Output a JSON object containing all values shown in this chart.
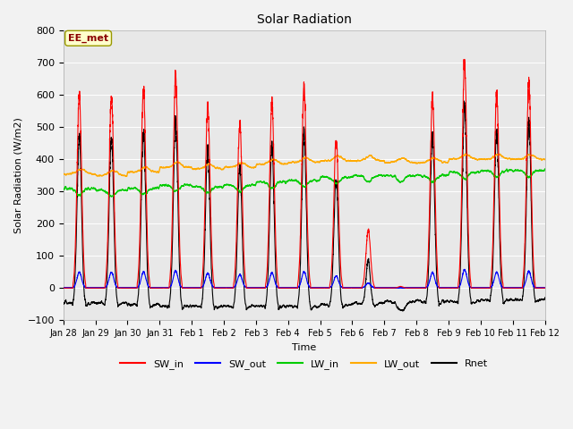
{
  "title": "Solar Radiation",
  "xlabel": "Time",
  "ylabel": "Solar Radiation (W/m2)",
  "ylim": [
    -100,
    800
  ],
  "yticks": [
    -100,
    0,
    100,
    200,
    300,
    400,
    500,
    600,
    700,
    800
  ],
  "annotation_text": "EE_met",
  "legend_entries": [
    "SW_in",
    "SW_out",
    "LW_in",
    "LW_out",
    "Rnet"
  ],
  "line_colors": {
    "SW_in": "#ff0000",
    "SW_out": "#0000ff",
    "LW_in": "#00cc00",
    "LW_out": "#ffaa00",
    "Rnet": "#000000"
  },
  "n_days": 15,
  "peak_heights_SWin": [
    600,
    600,
    620,
    660,
    560,
    510,
    570,
    620,
    460,
    180,
    5,
    590,
    700,
    600,
    640
  ],
  "xtick_labels": [
    "Jan 28",
    "Jan 29",
    "Jan 30",
    "Jan 31",
    "Feb 1",
    "Feb 2",
    "Feb 3",
    "Feb 4",
    "Feb 5",
    "Feb 6",
    "Feb 7",
    "Feb 8",
    "Feb 9",
    "Feb 10",
    "Feb 11",
    "Feb 12"
  ]
}
